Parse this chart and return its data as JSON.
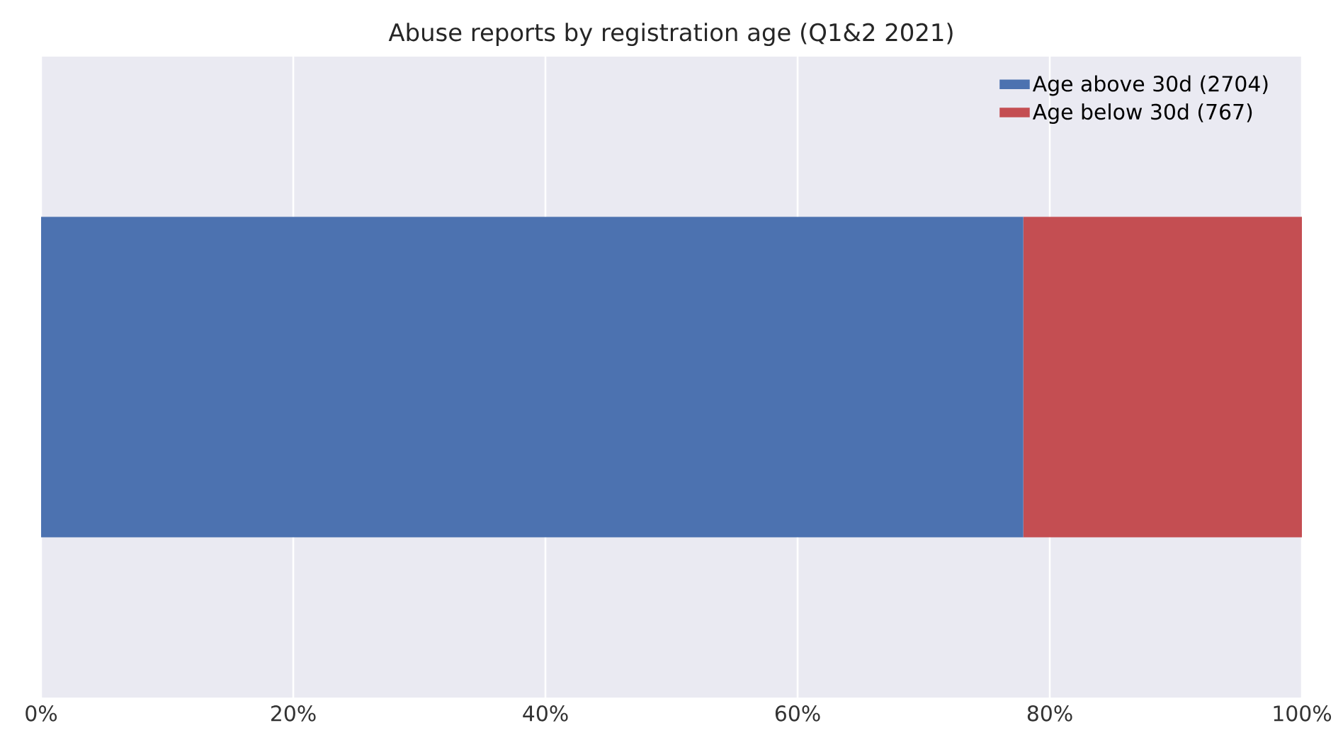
{
  "chart_data": {
    "type": "bar",
    "title": "Abuse reports by registration age (Q1&2 2021)",
    "orientation": "horizontal",
    "stacked": true,
    "categories": [
      null
    ],
    "series": [
      {
        "name": "Age above 30d (2704)",
        "color": "#4c72b0",
        "values": [
          77.9
        ]
      },
      {
        "name": "Age below 30d (767)",
        "color": "#c44e52",
        "values": [
          22.1
        ]
      }
    ],
    "xlim": [
      0,
      100
    ],
    "xticks": [
      {
        "value": 0,
        "label": "0%"
      },
      {
        "value": 20,
        "label": "20%"
      },
      {
        "value": 40,
        "label": "40%"
      },
      {
        "value": 60,
        "label": "60%"
      },
      {
        "value": 80,
        "label": "80%"
      },
      {
        "value": 100,
        "label": "100%"
      }
    ],
    "grid": "x",
    "legend": "top right",
    "tick_labels": "x"
  }
}
